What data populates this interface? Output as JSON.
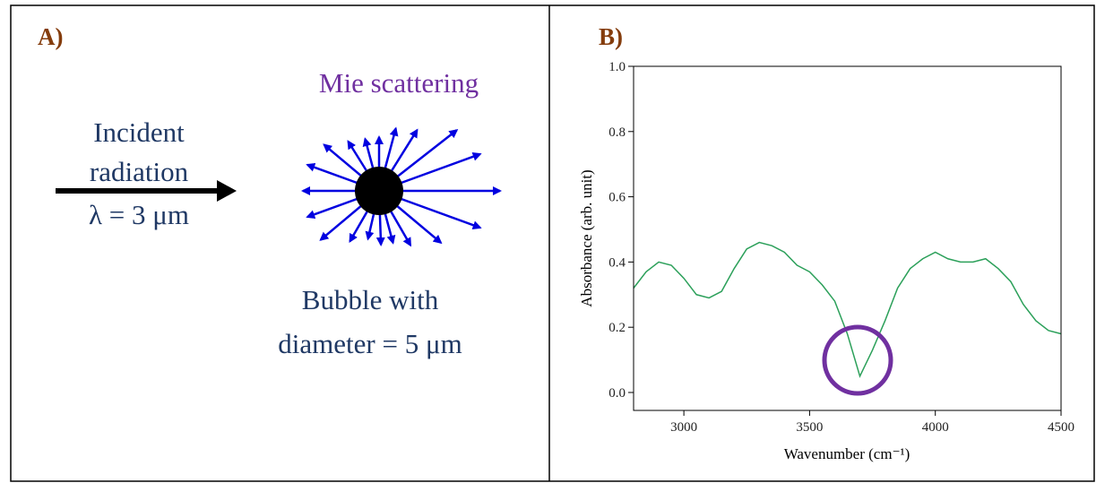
{
  "panel_a": {
    "label": "A)",
    "title": "Mie scattering",
    "incident_lines": [
      "Incident",
      "radiation",
      "λ = 3 μm"
    ],
    "bubble_lines": [
      "Bubble with",
      "diameter = 5 μm"
    ]
  },
  "chart_data": {
    "type": "line",
    "label": "B)",
    "x_label": "Wavenumber (cm⁻¹)",
    "y_label": "Absorbance (arb. unit)",
    "x": [
      2800,
      2850,
      2900,
      2950,
      3000,
      3050,
      3100,
      3150,
      3200,
      3250,
      3300,
      3350,
      3400,
      3450,
      3500,
      3550,
      3600,
      3650,
      3700,
      3750,
      3800,
      3850,
      3900,
      3950,
      4000,
      4050,
      4100,
      4150,
      4200,
      4250,
      4300,
      4350,
      4400,
      4450,
      4500
    ],
    "series": [
      {
        "name": "Absorbance",
        "color": "#2ca05a",
        "values": [
          0.32,
          0.37,
          0.4,
          0.39,
          0.35,
          0.3,
          0.29,
          0.31,
          0.38,
          0.44,
          0.46,
          0.45,
          0.43,
          0.39,
          0.37,
          0.33,
          0.28,
          0.18,
          0.05,
          0.13,
          0.22,
          0.32,
          0.38,
          0.41,
          0.43,
          0.41,
          0.4,
          0.4,
          0.41,
          0.38,
          0.34,
          0.27,
          0.22,
          0.19,
          0.18
        ]
      }
    ],
    "xlim": [
      2800,
      4500
    ],
    "ylim": [
      -0.055,
      1.0
    ],
    "xticks": [
      3000,
      3500,
      4000,
      4500
    ],
    "yticks": [
      {
        "value": 0,
        "label": "0.0"
      },
      {
        "value": 0.2,
        "label": "0.2"
      },
      {
        "value": 0.4,
        "label": "0.4"
      },
      {
        "value": 0.6,
        "label": "0.6"
      },
      {
        "value": 0.8,
        "label": "0.8"
      },
      {
        "value": 1.0,
        "label": "1.0"
      }
    ]
  }
}
